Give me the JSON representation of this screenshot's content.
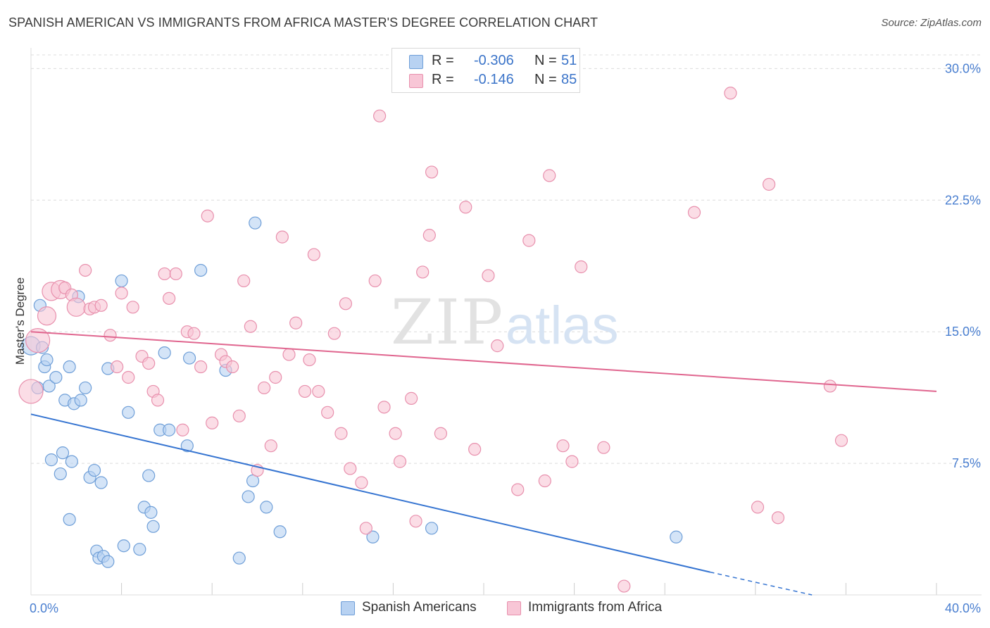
{
  "header": {
    "title": "SPANISH AMERICAN VS IMMIGRANTS FROM AFRICA MASTER'S DEGREE CORRELATION CHART",
    "source": "Source: ZipAtlas.com"
  },
  "watermark": {
    "zip": "ZIP",
    "atlas": "atlas"
  },
  "legend_top": {
    "rows": [
      {
        "r_label": "R =",
        "r_value": "-0.306",
        "n_label": "N =",
        "n_value": "51"
      },
      {
        "r_label": "R =",
        "r_value": "-0.146",
        "n_label": "N =",
        "n_value": "85"
      }
    ]
  },
  "legend_bottom": {
    "items": [
      "Spanish Americans",
      "Immigrants from Africa"
    ]
  },
  "chart_data": {
    "type": "scatter",
    "xlabel": "",
    "ylabel": "Master's Degree",
    "xlim": [
      0,
      40
    ],
    "ylim": [
      0,
      31.5
    ],
    "x_tick_labels": [
      {
        "x": 0,
        "label": "0.0%"
      },
      {
        "x": 40,
        "label": "40.0%"
      }
    ],
    "y_tick_labels": [
      {
        "y": 7.5,
        "label": "7.5%"
      },
      {
        "y": 15,
        "label": "15.0%"
      },
      {
        "y": 22.5,
        "label": "22.5%"
      },
      {
        "y": 30,
        "label": "30.0%"
      }
    ],
    "grid": true,
    "legend_placement": "bottom",
    "colors": {
      "blue_fill": "#b8d2f2",
      "blue_stroke": "#6f9fd8",
      "blue_line": "#3574d1",
      "pink_fill": "#f8c6d6",
      "pink_stroke": "#e890ad",
      "pink_line": "#e0668f",
      "tick_label": "#4a7fd0",
      "grid": "#dcdcdc"
    },
    "series": [
      {
        "name": "Spanish Americans",
        "color": "blue",
        "trend": {
          "x0": 0,
          "y0": 10.3,
          "x1": 30.0,
          "y1": 1.3,
          "dash_to_x": 34.5,
          "dash_to_y": 0
        },
        "points": [
          [
            0.0,
            14.2,
            2
          ],
          [
            0.3,
            11.8,
            1
          ],
          [
            0.4,
            16.5,
            1
          ],
          [
            0.6,
            13.0,
            1
          ],
          [
            0.7,
            13.4,
            1
          ],
          [
            0.8,
            11.9,
            1
          ],
          [
            0.9,
            7.7,
            1
          ],
          [
            1.1,
            12.4,
            1
          ],
          [
            1.3,
            6.9,
            1
          ],
          [
            1.4,
            8.1,
            1
          ],
          [
            1.5,
            11.1,
            1
          ],
          [
            1.7,
            13.0,
            1
          ],
          [
            1.7,
            4.3,
            1
          ],
          [
            1.8,
            7.6,
            1
          ],
          [
            1.9,
            10.9,
            1
          ],
          [
            2.1,
            17.0,
            1
          ],
          [
            2.2,
            11.1,
            1
          ],
          [
            2.4,
            11.8,
            1
          ],
          [
            2.6,
            6.7,
            1
          ],
          [
            2.8,
            7.1,
            1
          ],
          [
            2.9,
            2.5,
            1
          ],
          [
            3.0,
            2.1,
            1
          ],
          [
            3.1,
            6.4,
            1
          ],
          [
            3.2,
            2.2,
            1
          ],
          [
            3.4,
            1.9,
            1
          ],
          [
            3.4,
            12.9,
            1
          ],
          [
            4.0,
            17.9,
            1
          ],
          [
            4.1,
            2.8,
            1
          ],
          [
            4.3,
            10.4,
            1
          ],
          [
            4.8,
            2.6,
            1
          ],
          [
            5.0,
            5.0,
            1
          ],
          [
            5.2,
            6.8,
            1
          ],
          [
            5.3,
            4.7,
            1
          ],
          [
            5.4,
            3.9,
            1
          ],
          [
            5.7,
            9.4,
            1
          ],
          [
            5.9,
            13.8,
            1
          ],
          [
            6.1,
            9.4,
            1
          ],
          [
            6.9,
            8.5,
            1
          ],
          [
            7.0,
            13.5,
            1
          ],
          [
            7.5,
            18.5,
            1
          ],
          [
            8.6,
            12.8,
            1
          ],
          [
            9.2,
            2.1,
            1
          ],
          [
            9.6,
            5.6,
            1
          ],
          [
            9.8,
            6.5,
            1
          ],
          [
            9.9,
            21.2,
            1
          ],
          [
            10.4,
            5.0,
            1
          ],
          [
            11.0,
            3.6,
            1
          ],
          [
            15.1,
            3.3,
            1
          ],
          [
            17.7,
            3.8,
            1
          ],
          [
            28.5,
            3.3,
            1
          ],
          [
            0.5,
            14.1,
            1
          ]
        ]
      },
      {
        "name": "Immigrants from Africa",
        "color": "pink",
        "trend": {
          "x0": 0,
          "y0": 15.0,
          "x1": 40.0,
          "y1": 11.6
        },
        "points": [
          [
            0.0,
            11.6,
            3
          ],
          [
            0.3,
            14.5,
            3
          ],
          [
            0.7,
            15.9,
            2
          ],
          [
            0.9,
            17.3,
            2
          ],
          [
            1.3,
            17.4,
            2
          ],
          [
            1.5,
            17.5,
            1
          ],
          [
            1.8,
            17.1,
            1
          ],
          [
            2.0,
            16.4,
            2
          ],
          [
            2.4,
            18.5,
            1
          ],
          [
            2.6,
            16.3,
            1
          ],
          [
            2.8,
            16.4,
            1
          ],
          [
            3.1,
            16.5,
            1
          ],
          [
            3.5,
            14.8,
            1
          ],
          [
            3.8,
            13.0,
            1
          ],
          [
            4.0,
            17.2,
            1
          ],
          [
            4.3,
            12.4,
            1
          ],
          [
            4.5,
            16.4,
            1
          ],
          [
            4.9,
            13.6,
            1
          ],
          [
            5.2,
            13.2,
            1
          ],
          [
            5.4,
            11.6,
            1
          ],
          [
            5.6,
            11.1,
            1
          ],
          [
            5.9,
            18.3,
            1
          ],
          [
            6.1,
            16.9,
            1
          ],
          [
            6.4,
            18.3,
            1
          ],
          [
            6.7,
            9.4,
            1
          ],
          [
            6.9,
            15.0,
            1
          ],
          [
            7.2,
            14.9,
            1
          ],
          [
            7.5,
            13.0,
            1
          ],
          [
            7.8,
            21.6,
            1
          ],
          [
            8.0,
            9.8,
            1
          ],
          [
            8.4,
            13.7,
            1
          ],
          [
            8.6,
            13.3,
            1
          ],
          [
            8.9,
            13.0,
            1
          ],
          [
            9.2,
            10.2,
            1
          ],
          [
            9.4,
            17.9,
            1
          ],
          [
            9.7,
            15.3,
            1
          ],
          [
            10.0,
            7.1,
            1
          ],
          [
            10.3,
            11.8,
            1
          ],
          [
            10.6,
            8.5,
            1
          ],
          [
            10.8,
            12.4,
            1
          ],
          [
            11.1,
            20.4,
            1
          ],
          [
            11.4,
            13.7,
            1
          ],
          [
            11.7,
            15.5,
            1
          ],
          [
            12.1,
            11.6,
            1
          ],
          [
            12.3,
            13.4,
            1
          ],
          [
            12.5,
            19.4,
            1
          ],
          [
            12.7,
            11.6,
            1
          ],
          [
            13.1,
            10.4,
            1
          ],
          [
            13.4,
            14.9,
            1
          ],
          [
            13.7,
            9.2,
            1
          ],
          [
            13.9,
            16.6,
            1
          ],
          [
            14.1,
            7.2,
            1
          ],
          [
            14.6,
            6.4,
            1
          ],
          [
            14.8,
            3.8,
            1
          ],
          [
            15.2,
            17.9,
            1
          ],
          [
            15.4,
            27.3,
            1
          ],
          [
            15.6,
            10.7,
            1
          ],
          [
            16.1,
            9.2,
            1
          ],
          [
            16.3,
            7.6,
            1
          ],
          [
            16.8,
            11.2,
            1
          ],
          [
            17.0,
            4.2,
            1
          ],
          [
            17.3,
            18.4,
            1
          ],
          [
            17.6,
            20.5,
            1
          ],
          [
            17.7,
            24.1,
            1
          ],
          [
            18.1,
            9.2,
            1
          ],
          [
            19.2,
            22.1,
            1
          ],
          [
            19.6,
            8.3,
            1
          ],
          [
            20.2,
            18.2,
            1
          ],
          [
            20.6,
            14.2,
            1
          ],
          [
            21.5,
            6.0,
            1
          ],
          [
            22.0,
            20.2,
            1
          ],
          [
            22.7,
            6.5,
            1
          ],
          [
            22.9,
            23.9,
            1
          ],
          [
            23.5,
            8.5,
            1
          ],
          [
            23.9,
            7.6,
            1
          ],
          [
            24.3,
            18.7,
            1
          ],
          [
            25.3,
            8.4,
            1
          ],
          [
            26.2,
            0.5,
            1
          ],
          [
            29.3,
            21.8,
            1
          ],
          [
            30.9,
            28.6,
            1
          ],
          [
            32.1,
            5.0,
            1
          ],
          [
            32.6,
            23.4,
            1
          ],
          [
            33.0,
            4.4,
            1
          ],
          [
            35.3,
            11.9,
            1
          ],
          [
            35.8,
            8.8,
            1
          ]
        ]
      }
    ]
  }
}
